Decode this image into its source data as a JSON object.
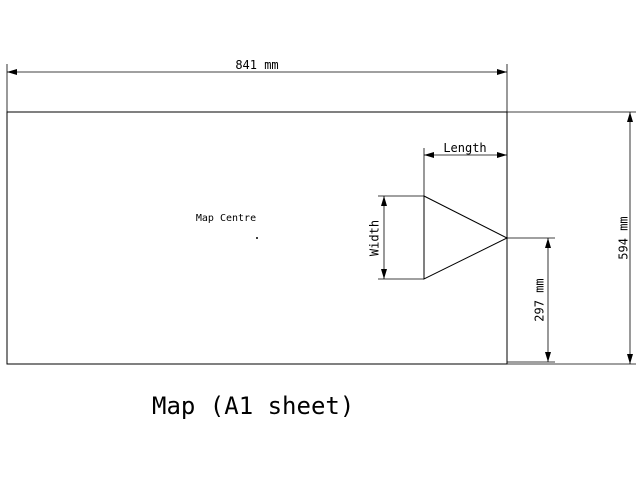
{
  "dimensions": {
    "width_label": "841 mm",
    "height_label": "594 mm",
    "half_height_label": "297 mm",
    "length_label": "Length",
    "width_arrow_label": "Width"
  },
  "labels": {
    "map_centre": "Map Centre",
    "caption": "Map (A1 sheet)"
  }
}
